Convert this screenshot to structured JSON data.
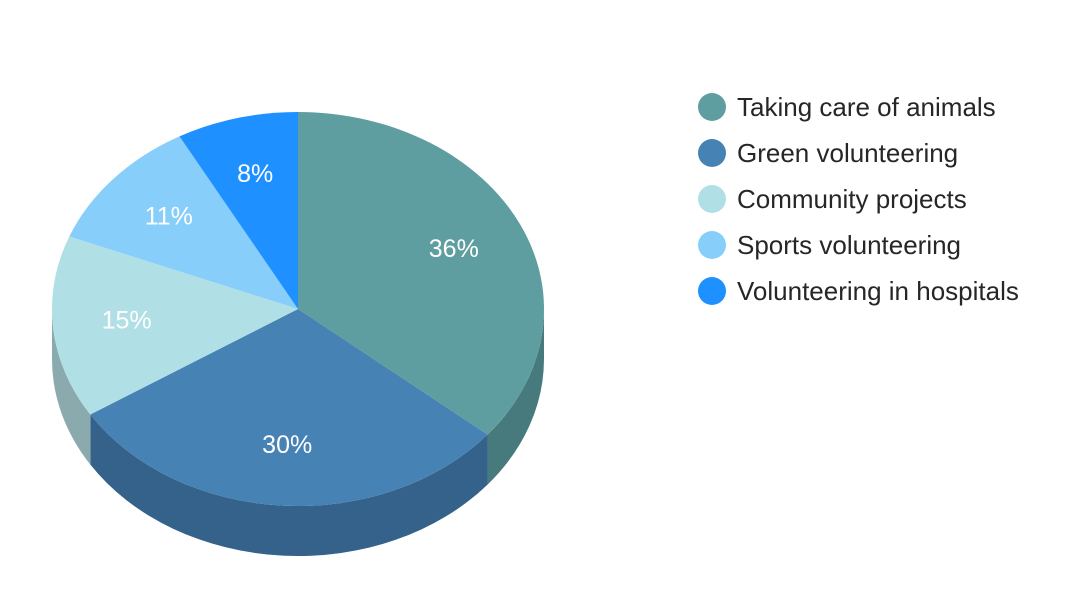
{
  "chart_data": {
    "type": "pie",
    "style": "3d",
    "title": "",
    "legend_position": "right",
    "slices": [
      {
        "label": "Taking care of animals",
        "value": 36,
        "display": "36%",
        "color": "#5F9EA0",
        "side_color": "#477A7C"
      },
      {
        "label": "Green volunteering",
        "value": 30,
        "display": "30%",
        "color": "#4682B4",
        "side_color": "#35628A"
      },
      {
        "label": "Community projects",
        "value": 15,
        "display": "15%",
        "color": "#B0E0E6",
        "side_color": "#8AAAAE"
      },
      {
        "label": "Sports volunteering",
        "value": 11,
        "display": "11%",
        "color": "#87CEFA",
        "side_color": "#6AA3C6"
      },
      {
        "label": "Volunteering in hospitals",
        "value": 8,
        "display": "8%",
        "color": "#1E90FF",
        "side_color": "#176FC4"
      }
    ]
  }
}
